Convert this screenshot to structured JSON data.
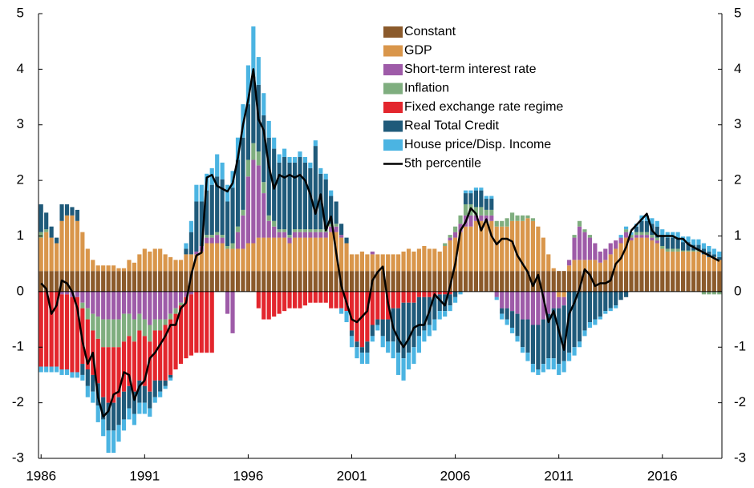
{
  "chart_data": {
    "type": "bar",
    "stacked": true,
    "categories": [
      "1986",
      null,
      null,
      null,
      null,
      null,
      null,
      null,
      null,
      null,
      null,
      null,
      null,
      null,
      null,
      null,
      null,
      null,
      null,
      null,
      "1991",
      null,
      null,
      null,
      null,
      null,
      null,
      null,
      null,
      null,
      null,
      null,
      null,
      null,
      null,
      null,
      null,
      null,
      null,
      null,
      "1996",
      null,
      null,
      null,
      null,
      null,
      null,
      null,
      null,
      null,
      null,
      null,
      null,
      null,
      null,
      null,
      null,
      null,
      null,
      null,
      "2001",
      null,
      null,
      null,
      null,
      null,
      null,
      null,
      null,
      null,
      null,
      null,
      null,
      null,
      null,
      null,
      null,
      null,
      null,
      null,
      "2006",
      null,
      null,
      null,
      null,
      null,
      null,
      null,
      null,
      null,
      null,
      null,
      null,
      null,
      null,
      null,
      null,
      null,
      null,
      null,
      "2011",
      null,
      null,
      null,
      null,
      null,
      null,
      null,
      null,
      null,
      null,
      null,
      null,
      null,
      null,
      null,
      null,
      null,
      null,
      null,
      "2016",
      null,
      null,
      null,
      null,
      null,
      null,
      null,
      null,
      null,
      null,
      null
    ],
    "ylim": [
      -3,
      5
    ],
    "yticks": [
      -3,
      -2,
      -1,
      0,
      1,
      2,
      3,
      4,
      5
    ],
    "series": [
      {
        "name": "Constant",
        "color": "#8b5a2b",
        "values": [
          0.37,
          0.37,
          0.37,
          0.37,
          0.37,
          0.37,
          0.37,
          0.37,
          0.37,
          0.37,
          0.37,
          0.37,
          0.37,
          0.37,
          0.37,
          0.37,
          0.37,
          0.37,
          0.37,
          0.37,
          0.37,
          0.37,
          0.37,
          0.37,
          0.37,
          0.37,
          0.37,
          0.37,
          0.37,
          0.37,
          0.37,
          0.37,
          0.37,
          0.37,
          0.37,
          0.37,
          0.37,
          0.37,
          0.37,
          0.37,
          0.37,
          0.37,
          0.37,
          0.37,
          0.37,
          0.37,
          0.37,
          0.37,
          0.37,
          0.37,
          0.37,
          0.37,
          0.37,
          0.37,
          0.37,
          0.37,
          0.37,
          0.37,
          0.37,
          0.37,
          0.37,
          0.37,
          0.37,
          0.37,
          0.37,
          0.37,
          0.37,
          0.37,
          0.37,
          0.37,
          0.37,
          0.37,
          0.37,
          0.37,
          0.37,
          0.37,
          0.37,
          0.37,
          0.37,
          0.37,
          0.37,
          0.37,
          0.37,
          0.37,
          0.37,
          0.37,
          0.37,
          0.37,
          0.37,
          0.37,
          0.37,
          0.37,
          0.37,
          0.37,
          0.37,
          0.37,
          0.37,
          0.37,
          0.37,
          0.37,
          0.37,
          0.37,
          0.37,
          0.37,
          0.37,
          0.37,
          0.37,
          0.37,
          0.37,
          0.37,
          0.37,
          0.37,
          0.37,
          0.37,
          0.37,
          0.37,
          0.37,
          0.37,
          0.37,
          0.37,
          0.37,
          0.37,
          0.37,
          0.37,
          0.37,
          0.37,
          0.37,
          0.37,
          0.37,
          0.37,
          0.37,
          0.37
        ]
      },
      {
        "name": "GDP",
        "color": "#d9964b",
        "values": [
          0.6,
          0.7,
          0.6,
          0.5,
          0.9,
          1.0,
          1.0,
          0.9,
          0.7,
          0.4,
          0.2,
          0.1,
          0.1,
          0.1,
          0.1,
          0.05,
          0.05,
          0.2,
          0.15,
          0.3,
          0.4,
          0.35,
          0.4,
          0.4,
          0.3,
          0.25,
          0.2,
          0.2,
          0.3,
          0.3,
          0.3,
          0.35,
          0.5,
          0.5,
          0.5,
          0.5,
          0.4,
          0.4,
          0.4,
          0.4,
          0.5,
          0.5,
          0.6,
          0.6,
          0.6,
          0.6,
          0.6,
          0.6,
          0.5,
          0.6,
          0.6,
          0.6,
          0.6,
          0.6,
          0.6,
          0.6,
          0.7,
          0.7,
          0.6,
          0.5,
          0.3,
          0.3,
          0.35,
          0.3,
          0.3,
          0.3,
          0.3,
          0.3,
          0.3,
          0.3,
          0.35,
          0.4,
          0.35,
          0.4,
          0.45,
          0.4,
          0.4,
          0.35,
          0.45,
          0.55,
          0.6,
          0.7,
          0.8,
          0.8,
          0.9,
          0.9,
          0.9,
          0.9,
          0.8,
          0.8,
          0.8,
          0.9,
          0.9,
          0.9,
          0.95,
          0.9,
          0.8,
          0.6,
          0.3,
          0.05,
          -0.1,
          -0.1,
          0.1,
          0.2,
          0.2,
          0.2,
          0.2,
          0.2,
          0.15,
          0.2,
          0.3,
          0.4,
          0.5,
          0.6,
          0.55,
          0.6,
          0.6,
          0.6,
          0.55,
          0.5,
          0.4,
          0.35,
          0.35,
          0.35,
          0.35,
          0.35,
          0.35,
          0.35,
          0.3,
          0.25,
          0.25,
          0.2
        ]
      },
      {
        "name": "Short-term interest rate",
        "color": "#9e5ba8",
        "values": [
          0,
          0,
          0,
          0,
          -0.05,
          -0.05,
          -0.1,
          -0.1,
          -0.2,
          -0.3,
          -0.4,
          -0.45,
          -0.5,
          -0.5,
          -0.5,
          -0.5,
          -0.4,
          -0.4,
          -0.5,
          -0.4,
          -0.5,
          -0.6,
          -0.5,
          -0.5,
          -0.5,
          -0.4,
          -0.3,
          -0.2,
          -0.1,
          -0.05,
          0.05,
          0.1,
          0.1,
          0.1,
          0.15,
          0.1,
          -0.4,
          -0.75,
          0.3,
          0.6,
          1.2,
          1.5,
          1.3,
          0.8,
          0.3,
          0.2,
          0.1,
          0.1,
          0.1,
          0.1,
          0.1,
          0.1,
          0.1,
          0.1,
          0.1,
          0.1,
          0.1,
          0.1,
          0.05,
          0,
          0,
          0,
          0,
          0,
          0.05,
          0,
          0,
          0,
          0,
          0,
          0,
          0,
          0,
          0,
          0,
          0,
          0,
          0,
          0,
          0.05,
          0.1,
          0.15,
          0.2,
          0.2,
          0.1,
          0.1,
          0.1,
          0.1,
          -0.1,
          -0.3,
          -0.3,
          -0.35,
          -0.4,
          -0.5,
          -0.5,
          -0.6,
          -0.6,
          -0.5,
          -0.4,
          -0.3,
          -0.2,
          -0.15,
          0.1,
          0.4,
          0.6,
          0.5,
          0.4,
          0.3,
          0.2,
          0.2,
          0.2,
          0.15,
          0.1,
          0.1,
          0.05,
          0.05,
          0.05,
          0.05,
          0.05,
          0.05,
          0,
          0,
          0,
          0,
          0,
          0,
          0,
          0,
          0,
          0,
          0,
          0
        ]
      },
      {
        "name": "Inflation",
        "color": "#7fae7f",
        "values": [
          0.1,
          0.05,
          0,
          0,
          0,
          0,
          0,
          0,
          -0.1,
          -0.2,
          -0.3,
          -0.4,
          -0.5,
          -0.5,
          -0.5,
          -0.5,
          -0.5,
          -0.4,
          -0.4,
          -0.3,
          -0.3,
          -0.3,
          -0.2,
          -0.2,
          -0.1,
          -0.1,
          -0.1,
          -0.05,
          0,
          0,
          0,
          0,
          0.05,
          0.05,
          0.05,
          0.05,
          0.05,
          0.1,
          0.1,
          0.1,
          0.3,
          0.3,
          0.25,
          0.2,
          0.1,
          0.1,
          0.05,
          0.05,
          0.05,
          0.05,
          0.05,
          0.05,
          0.05,
          0.05,
          0.05,
          0.05,
          0.05,
          0.05,
          0,
          0,
          0,
          0,
          0,
          0,
          0,
          0,
          0,
          0,
          0,
          0,
          0,
          0,
          0,
          0,
          0,
          0,
          0,
          0,
          0.05,
          0.05,
          0.1,
          0.15,
          0.2,
          0.2,
          0.15,
          0.15,
          0.1,
          0.1,
          0.1,
          0.1,
          0.15,
          0.15,
          0.1,
          0.1,
          0.05,
          0.05,
          0,
          0,
          0,
          0,
          0,
          0,
          0,
          0.05,
          0.1,
          0.05,
          0.05,
          0,
          0,
          0,
          0,
          0,
          0,
          0.05,
          0.05,
          0.05,
          0.05,
          0.05,
          0.05,
          0.05,
          0.05,
          0.05,
          0.05,
          0.05,
          0.02,
          0.02,
          0.02,
          0.02,
          -0.05,
          -0.05,
          -0.05,
          -0.05
        ]
      },
      {
        "name": "Fixed exchange rate regime",
        "color": "#e3262d",
        "values": [
          -1.35,
          -1.35,
          -1.35,
          -1.35,
          -1.35,
          -1.35,
          -1.35,
          -1.35,
          -1.0,
          -0.9,
          -0.8,
          -0.8,
          -0.9,
          -1.0,
          -1.0,
          -0.9,
          -0.9,
          -0.9,
          -0.9,
          -0.9,
          -0.9,
          -0.9,
          -0.9,
          -0.9,
          -1.0,
          -1.0,
          -1.0,
          -1.05,
          -1.1,
          -1.1,
          -1.1,
          -1.1,
          -1.1,
          -1.1,
          0,
          0,
          0,
          0,
          0,
          0,
          0,
          0,
          -0.3,
          -0.5,
          -0.5,
          -0.45,
          -0.4,
          -0.35,
          -0.3,
          -0.3,
          -0.3,
          -0.25,
          -0.2,
          -0.2,
          -0.2,
          -0.2,
          -0.3,
          -0.3,
          -0.3,
          -0.35,
          -0.7,
          -0.9,
          -1.0,
          -0.9,
          -0.6,
          -0.5,
          -0.5,
          -0.5,
          -0.3,
          -0.3,
          -0.2,
          -0.2,
          -0.2,
          -0.1,
          -0.1,
          -0.1,
          -0.1,
          -0.05,
          -0.05,
          -0.05,
          0,
          0,
          0,
          0,
          0,
          0,
          0,
          0,
          0,
          0,
          0,
          0,
          0,
          0,
          0,
          0,
          0,
          0,
          0,
          0,
          0,
          0,
          0,
          0,
          0,
          0,
          0,
          0,
          0,
          0,
          0,
          0,
          0,
          0,
          0,
          0,
          0,
          0,
          0,
          0,
          0,
          0,
          0,
          0,
          0,
          0,
          0,
          0,
          0,
          0,
          0,
          0
        ]
      },
      {
        "name": "Real Total Credit",
        "color": "#1f5a7a",
        "values": [
          0.5,
          0.3,
          0.2,
          0.1,
          0.3,
          0.2,
          0.15,
          0.2,
          -0.2,
          -0.3,
          -0.3,
          -0.4,
          -0.4,
          -0.5,
          -0.5,
          -0.5,
          -0.5,
          -0.4,
          -0.4,
          -0.4,
          -0.3,
          -0.3,
          -0.3,
          -0.2,
          -0.1,
          -0.05,
          0,
          0,
          0.1,
          0.4,
          0.9,
          0.8,
          0.8,
          0.9,
          1.0,
          1.0,
          0.8,
          1.0,
          1.2,
          1.3,
          1.0,
          1.2,
          1.2,
          1.2,
          1.4,
          1.3,
          1.2,
          1.3,
          1.3,
          1.2,
          1.3,
          1.2,
          1.1,
          1.5,
          1.0,
          0.9,
          0.5,
          0.4,
          0.2,
          0.1,
          -0.1,
          -0.1,
          -0.1,
          -0.2,
          -0.2,
          -0.1,
          -0.3,
          -0.4,
          -0.6,
          -0.8,
          -1.0,
          -0.9,
          -0.8,
          -0.7,
          -0.6,
          -0.5,
          -0.4,
          -0.3,
          -0.3,
          -0.2,
          -0.1,
          0,
          0.2,
          0.2,
          0.3,
          0.3,
          0.2,
          0.2,
          0,
          -0.1,
          -0.2,
          -0.3,
          -0.4,
          -0.5,
          -0.6,
          -0.7,
          -0.8,
          -0.8,
          -0.8,
          -0.9,
          -1.0,
          -1.0,
          -1.1,
          -1.0,
          -0.9,
          -0.7,
          -0.55,
          -0.5,
          -0.45,
          -0.35,
          -0.3,
          -0.25,
          -0.15,
          -0.1,
          0,
          0.1,
          0.2,
          0.2,
          0.2,
          0.2,
          0.2,
          0.2,
          0.2,
          0.2,
          0.15,
          0.15,
          0.1,
          0.1,
          0.1,
          0.1,
          0.05,
          0.05
        ]
      },
      {
        "name": "House price/Disp. Income",
        "color": "#4bb4e2",
        "values": [
          -0.1,
          -0.1,
          -0.1,
          -0.1,
          -0.1,
          -0.1,
          -0.1,
          -0.1,
          -0.1,
          -0.2,
          -0.2,
          -0.3,
          -0.3,
          -0.4,
          -0.4,
          -0.3,
          -0.2,
          -0.2,
          -0.2,
          -0.2,
          -0.2,
          -0.15,
          -0.1,
          -0.1,
          -0.05,
          -0.05,
          0,
          0,
          0.1,
          0.2,
          0.3,
          0.3,
          0.3,
          0.3,
          0.4,
          0.3,
          0.3,
          0.3,
          0.4,
          0.6,
          0.7,
          0.9,
          0.5,
          0.4,
          0.3,
          0.2,
          0.15,
          0.15,
          0.1,
          0.1,
          0.1,
          0.1,
          0.1,
          0.1,
          0.1,
          0.1,
          0.1,
          0,
          -0.1,
          -0.2,
          -0.2,
          -0.2,
          -0.2,
          -0.2,
          -0.1,
          -0.1,
          -0.2,
          -0.2,
          -0.3,
          -0.4,
          -0.4,
          -0.3,
          -0.3,
          -0.3,
          -0.2,
          -0.2,
          -0.2,
          -0.15,
          -0.1,
          -0.1,
          -0.1,
          -0.05,
          0.05,
          0.05,
          0.05,
          0.05,
          0.05,
          0.05,
          -0.05,
          -0.1,
          -0.1,
          -0.1,
          -0.1,
          -0.1,
          -0.15,
          -0.15,
          -0.1,
          -0.15,
          -0.2,
          -0.2,
          -0.2,
          -0.2,
          -0.15,
          -0.15,
          -0.1,
          -0.1,
          -0.1,
          -0.1,
          -0.05,
          -0.05,
          -0.05,
          -0.05,
          0.05,
          0.05,
          0.05,
          0.05,
          0.1,
          0.1,
          0.1,
          0.1,
          0.1,
          0.1,
          0.1,
          0.1,
          0.1,
          0.1,
          0.1,
          0.1,
          0.1,
          0.1,
          0.1,
          0.1
        ]
      },
      {
        "name": "5th percentile",
        "type": "line",
        "color": "#000000",
        "values": [
          0.15,
          0.05,
          -0.4,
          -0.25,
          0.2,
          0.15,
          0,
          -0.3,
          -0.9,
          -1.3,
          -1.1,
          -1.9,
          -2.25,
          -2.15,
          -1.85,
          -1.8,
          -1.45,
          -1.5,
          -1.95,
          -1.7,
          -1.6,
          -1.2,
          -1.1,
          -0.95,
          -0.8,
          -0.6,
          -0.6,
          -0.3,
          -0.2,
          0.3,
          0.65,
          0.7,
          2.05,
          2.1,
          1.9,
          1.85,
          1.8,
          1.95,
          2.4,
          3.0,
          3.45,
          4.0,
          3.1,
          2.9,
          2.25,
          1.85,
          2.1,
          2.05,
          2.1,
          2.05,
          2.1,
          2.0,
          1.75,
          1.4,
          1.75,
          1.1,
          1.35,
          0.7,
          0.1,
          -0.2,
          -0.5,
          -0.55,
          -0.45,
          -0.35,
          0.2,
          0.35,
          0.45,
          -0.2,
          -0.65,
          -0.85,
          -1.0,
          -0.85,
          -0.65,
          -0.6,
          -0.6,
          -0.35,
          -0.05,
          -0.15,
          -0.25,
          0.1,
          0.5,
          1.1,
          1.25,
          1.5,
          1.4,
          1.1,
          1.3,
          1.0,
          0.85,
          0.95,
          0.95,
          0.9,
          0.65,
          0.5,
          0.35,
          0.1,
          0.3,
          -0.1,
          -0.55,
          -0.35,
          -0.7,
          -1.05,
          -0.4,
          -0.2,
          0.05,
          0.4,
          0.3,
          0.1,
          0.15,
          0.15,
          0.2,
          0.5,
          0.6,
          0.8,
          1.1,
          1.2,
          1.3,
          1.4,
          1.1,
          1.0,
          1.0,
          1.0,
          1.0,
          0.95,
          0.95,
          0.85,
          0.8,
          0.75,
          0.7,
          0.65,
          0.6,
          0.55
        ]
      }
    ]
  }
}
